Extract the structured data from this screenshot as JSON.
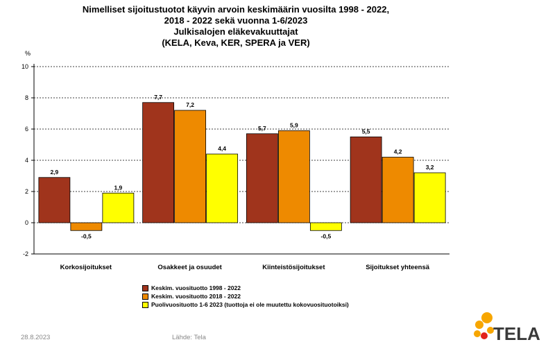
{
  "title": {
    "line1": "Nimelliset sijoitustuotot käyvin arvoin keskimäärin vuosilta 1998 - 2022,",
    "line2": "2018 - 2022 sekä vuonna 1-6/2023",
    "line3": "Julkisalojen eläkevakuuttajat",
    "line4": "(KELA, Keva, KER, SPERA ja VER)"
  },
  "chart_data": {
    "type": "bar",
    "ylabel": "%",
    "ylim": [
      -2,
      10
    ],
    "yticks": [
      -2,
      0,
      2,
      4,
      6,
      8,
      10
    ],
    "grid": true,
    "legend_position": "bottom",
    "categories": [
      "Korkosijoitukset",
      "Osakkeet ja osuudet",
      "Kiinteistösijoitukset",
      "Sijoitukset yhteensä"
    ],
    "series": [
      {
        "name": "Keskim. vuosituotto 1998 - 2022",
        "color": "#a0341c",
        "values": [
          2.9,
          7.7,
          5.7,
          5.5
        ],
        "labels": [
          "2,9",
          "7,7",
          "5,7",
          "5,5"
        ]
      },
      {
        "name": "Keskim. vuosituotto 2018 - 2022",
        "color": "#ee8a00",
        "values": [
          -0.5,
          7.2,
          5.9,
          4.2
        ],
        "labels": [
          "-0,5",
          "7,2",
          "5,9",
          "4,2"
        ]
      },
      {
        "name": "Puolivuosituotto 1-6 2023 (tuottoja ei ole muutettu kokovuosituotoiksi)",
        "color": "#ffff00",
        "values": [
          1.9,
          4.4,
          -0.5,
          3.2
        ],
        "labels": [
          "1,9",
          "4,4",
          "-0,5",
          "3,2"
        ]
      }
    ]
  },
  "footer": {
    "date": "28.8.2023",
    "source": "Lähde: Tela"
  },
  "logo": {
    "text": "TELA",
    "icon": "tela-flower-logo",
    "colors": [
      "#f7a600",
      "#e2231a"
    ]
  }
}
